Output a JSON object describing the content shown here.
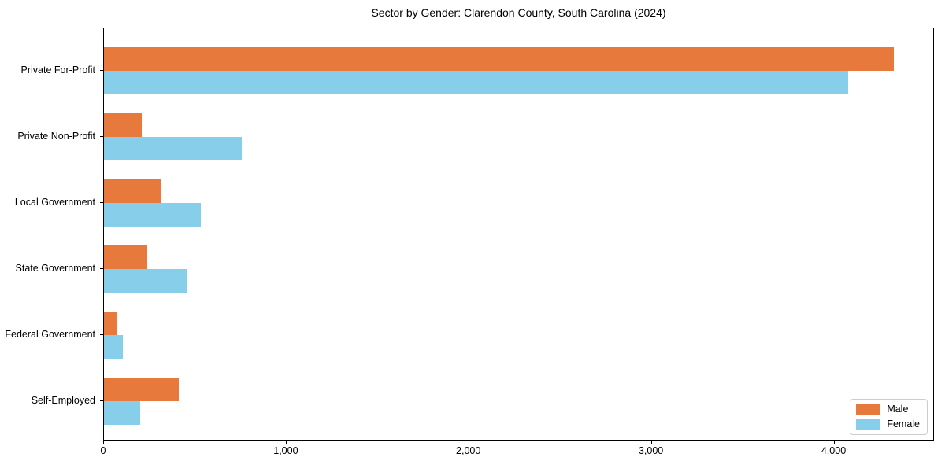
{
  "chart_data": {
    "type": "bar",
    "orientation": "horizontal",
    "title": "Sector by Gender: Clarendon County, South Carolina (2024)",
    "categories": [
      "Private For-Profit",
      "Private Non-Profit",
      "Local Government",
      "State Government",
      "Federal Government",
      "Self-Employed"
    ],
    "series": [
      {
        "name": "Male",
        "color": "#E8793D",
        "values": [
          4325,
          205,
          310,
          235,
          70,
          410
        ]
      },
      {
        "name": "Female",
        "color": "#87CEEB",
        "values": [
          4075,
          755,
          530,
          455,
          105,
          200
        ]
      }
    ],
    "xlabel": "",
    "ylabel": "",
    "xlim": [
      0,
      4550
    ],
    "x_ticks": [
      0,
      1000,
      2000,
      3000,
      4000
    ],
    "x_tick_labels": [
      "0",
      "1,000",
      "2,000",
      "3,000",
      "4,000"
    ],
    "grid": false,
    "legend": {
      "position": "lower right",
      "entries": [
        "Male",
        "Female"
      ]
    }
  }
}
